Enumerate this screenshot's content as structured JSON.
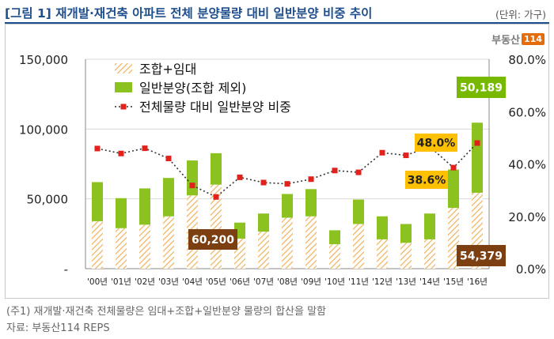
{
  "header": {
    "title": "[그림 1] 재개발·재건축 아파트 전체 분양물량 대비 일반분양 비중 추이",
    "unit": "(단위: 가구)"
  },
  "logo": {
    "text": "부동산",
    "number": "114"
  },
  "footer": {
    "note": "(주1) 재개발·재건축 전체물량은 임대+조합+일반분양 물량의 합산을 말함",
    "source": "자료: 부동산114 REPS"
  },
  "chart_data": {
    "type": "bar",
    "categories": [
      "'00년",
      "'01년",
      "'02년",
      "'03년",
      "'04년",
      "'05년",
      "'06년",
      "'07년",
      "'08년",
      "'09년",
      "'10년",
      "'11년",
      "'12년",
      "'13년",
      "'14년",
      "'15년",
      "'16년"
    ],
    "series": [
      {
        "name": "조합+임대",
        "kind": "stacked-bar",
        "values": [
          34000,
          29000,
          31500,
          37500,
          52500,
          60200,
          21500,
          26500,
          36500,
          37500,
          17500,
          32000,
          21000,
          18500,
          21000,
          43500,
          54379
        ]
      },
      {
        "name": "일반분양(조합 제외)",
        "kind": "stacked-bar",
        "values": [
          28000,
          21500,
          26000,
          27500,
          25000,
          22500,
          11500,
          13000,
          17000,
          19500,
          10000,
          17500,
          16500,
          13500,
          18500,
          27500,
          50189
        ]
      },
      {
        "name": "전체물량 대비 일반분양 비중",
        "kind": "line-secondary-axis",
        "values": [
          45.9,
          44.0,
          46.0,
          42.1,
          31.8,
          27.4,
          34.9,
          32.9,
          32.4,
          34.2,
          37.5,
          36.8,
          44.3,
          43.3,
          46.6,
          38.6,
          48.0
        ]
      }
    ],
    "y_left": {
      "ticks": [
        "-",
        "50,000",
        "100,000",
        "150,000"
      ],
      "range": [
        0,
        150000
      ]
    },
    "y_right": {
      "ticks": [
        "0.0%",
        "20.0%",
        "40.0%",
        "60.0%",
        "80.0%"
      ],
      "range": [
        0,
        80
      ]
    },
    "grid": "horizontal",
    "legend_position": "top-left",
    "annotations": {
      "bar_2005": "60,200",
      "bar_2016_top": "50,189",
      "bar_2016_bottom": "54,379",
      "pct_2016": "48.0%",
      "pct_2015": "38.6%"
    },
    "colors": {
      "hatch": "#f0b768",
      "general": "#8cc21f",
      "line": "#333333",
      "marker": "#e2211c",
      "brown_box": "#7b3f12",
      "green_box": "#76b900",
      "yellow_box": "#ffc000"
    }
  }
}
